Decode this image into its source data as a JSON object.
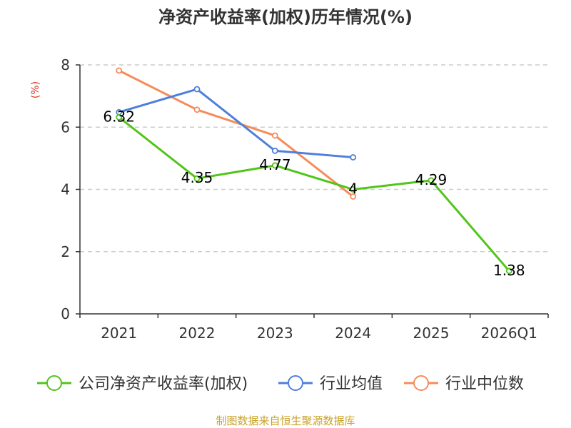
{
  "chart_data": {
    "type": "line",
    "title": "净资产收益率(加权)历年情况(%)",
    "ylabel": "(%)",
    "xlabel": "",
    "categories": [
      "2021",
      "2022",
      "2023",
      "2024",
      "2025",
      "2026Q1"
    ],
    "ylim": [
      0,
      8
    ],
    "yticks": [
      0,
      2,
      4,
      6,
      8
    ],
    "grid": true,
    "legend_position": "bottom",
    "series": [
      {
        "name": "公司净资产收益率(加权)",
        "color": "#52c41a",
        "values": [
          6.32,
          4.35,
          4.77,
          4,
          4.29,
          1.38
        ],
        "labels": [
          "6.32",
          "4.35",
          "4.77",
          "4",
          "4.29",
          "1.38"
        ]
      },
      {
        "name": "行业均值",
        "color": "#4f7fdb",
        "values": [
          6.48,
          7.22,
          5.24,
          5.03,
          null,
          null
        ]
      },
      {
        "name": "行业中位数",
        "color": "#f58c5a",
        "values": [
          7.82,
          6.56,
          5.73,
          3.77,
          null,
          null
        ]
      }
    ]
  },
  "source": "制图数据来自恒生聚源数据库"
}
